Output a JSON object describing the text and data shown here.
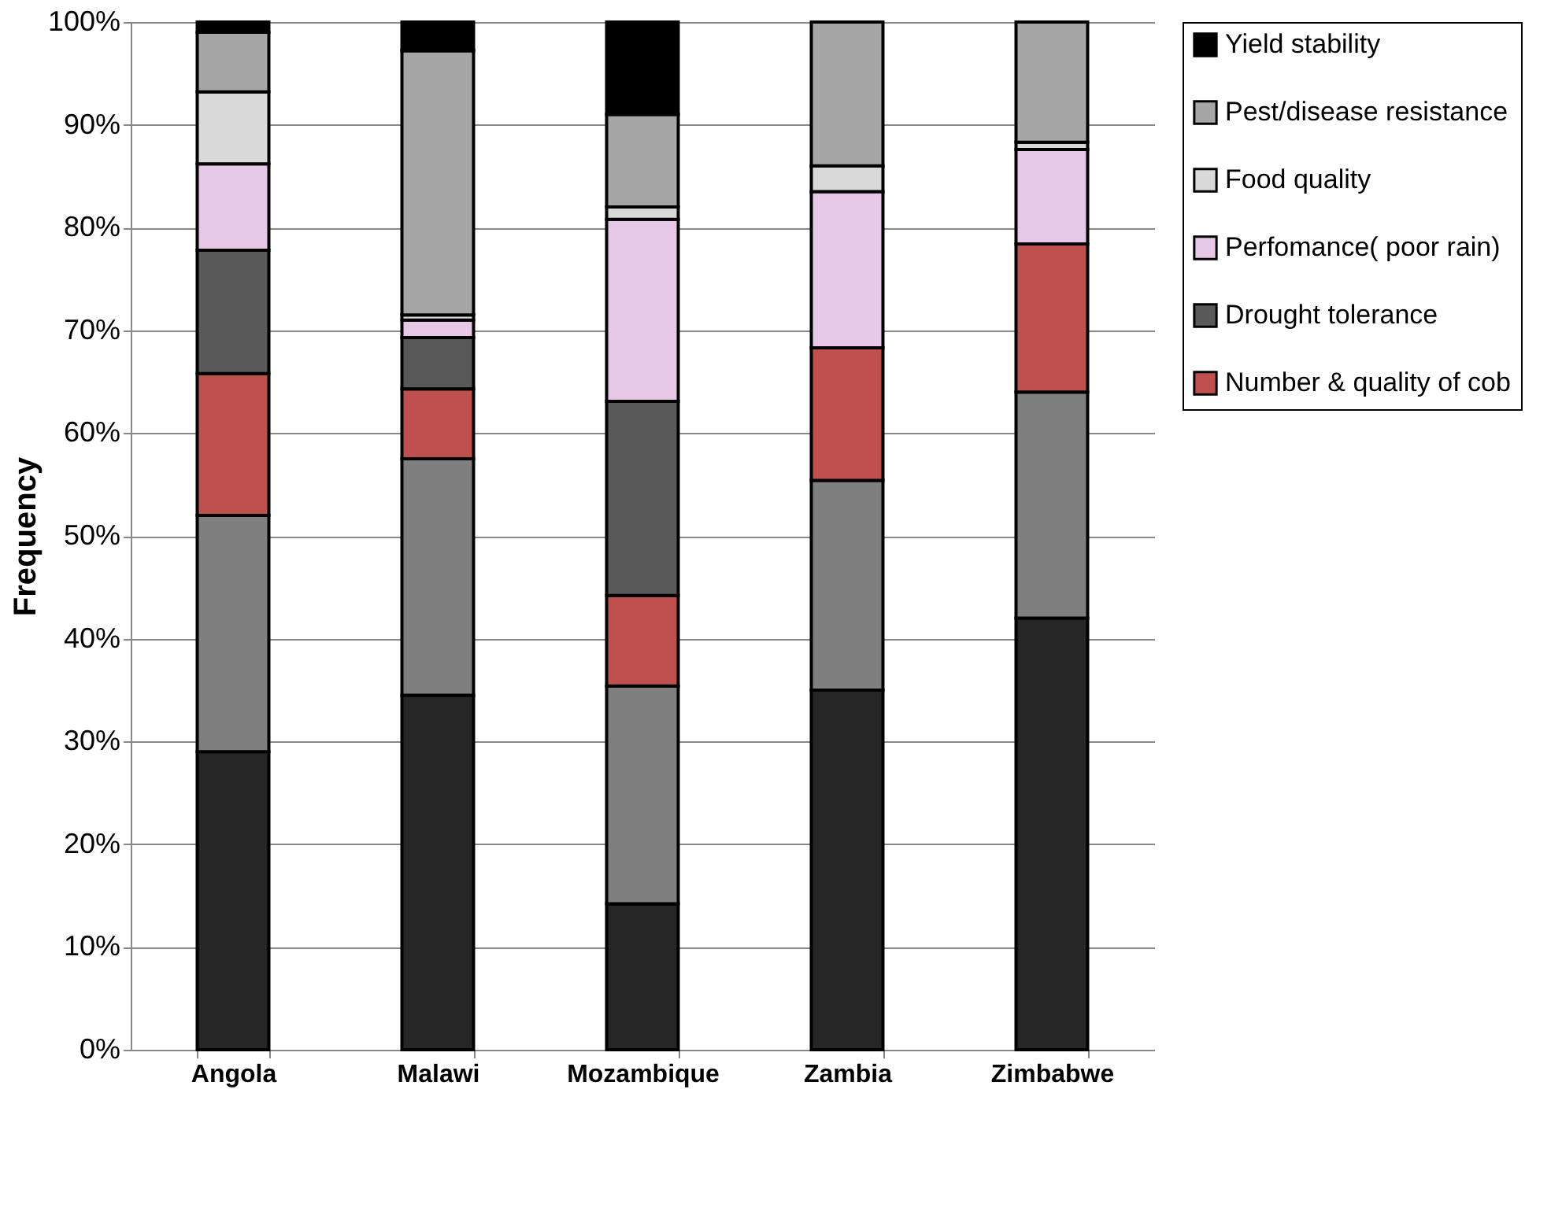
{
  "chart_data": {
    "type": "bar",
    "stacked": true,
    "ylabel": "Frequency",
    "categories": [
      "Angola",
      "Malawi",
      "Mozambique",
      "Zambia",
      "Zimbabwe"
    ],
    "series": [
      {
        "color": "#262626",
        "values": [
          29,
          34.5,
          14.2,
          35,
          42
        ]
      },
      {
        "color": "#7f7f7f",
        "values": [
          23,
          23,
          21.2,
          20.4,
          22
        ]
      },
      {
        "name": "Number & quality of cob",
        "color": "#c0504d",
        "values": [
          13.8,
          6.8,
          8.8,
          12.9,
          14.4
        ]
      },
      {
        "name": "Drought tolerance",
        "color": "#595959",
        "values": [
          12,
          5,
          18.9,
          0,
          0
        ]
      },
      {
        "name": "Perfomance( poor rain)",
        "color": "#e6c8e6",
        "values": [
          8.4,
          1.7,
          17.7,
          15.2,
          9.2
        ]
      },
      {
        "name": "Food quality",
        "color": "#d9d9d9",
        "values": [
          7,
          0.5,
          1.2,
          2.5,
          0.7
        ]
      },
      {
        "name": "Pest/disease resistance",
        "color": "#a6a6a6",
        "values": [
          5.8,
          25.7,
          9,
          14,
          11.7
        ]
      },
      {
        "name": "Yield stability",
        "color": "#000000",
        "values": [
          1,
          2.8,
          9,
          0,
          0
        ]
      }
    ],
    "ylim": [
      0,
      100
    ],
    "yticks": [
      {
        "value": 0,
        "label": "0%"
      },
      {
        "value": 10,
        "label": "10%"
      },
      {
        "value": 20,
        "label": "20%"
      },
      {
        "value": 30,
        "label": "30%"
      },
      {
        "value": 40,
        "label": "40%"
      },
      {
        "value": 50,
        "label": "50%"
      },
      {
        "value": 60,
        "label": "60%"
      },
      {
        "value": 70,
        "label": "70%"
      },
      {
        "value": 80,
        "label": "80%"
      },
      {
        "value": 90,
        "label": "90%"
      },
      {
        "value": 100,
        "label": "100%"
      }
    ],
    "grid": "y",
    "legend": "right"
  }
}
